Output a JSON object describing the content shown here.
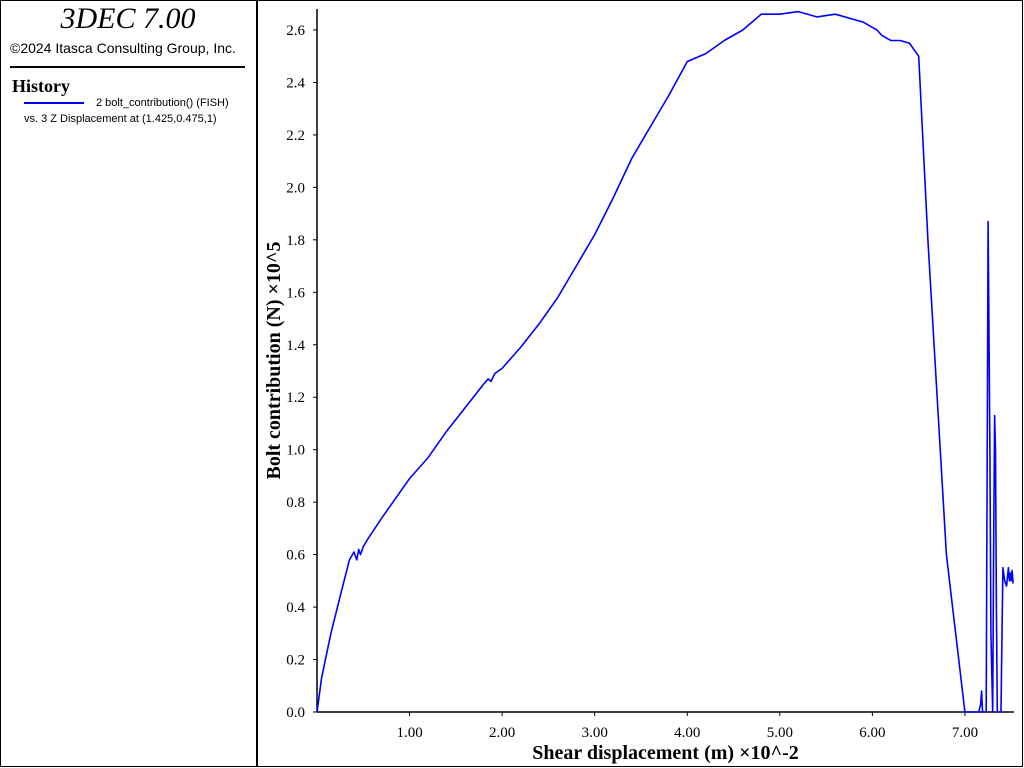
{
  "sidebar": {
    "app_title": "3DEC 7.00",
    "copyright": "©2024 Itasca Consulting Group, Inc.",
    "legend_heading": "History",
    "legend_line1": "2 bolt_contribution() (FISH)",
    "legend_line2": "vs. 3 Z Displacement at (1.425,0.475,1)"
  },
  "chart_data": {
    "type": "line",
    "xlabel": "Shear displacement (m) ×10^-2",
    "ylabel": "Bolt contribution (N) ×10^5",
    "xlim": [
      0.0,
      7.53
    ],
    "ylim": [
      0.0,
      2.68
    ],
    "x_ticks": [
      1.0,
      2.0,
      3.0,
      4.0,
      5.0,
      6.0,
      7.0
    ],
    "x_tick_labels": [
      "1.00",
      "2.00",
      "3.00",
      "4.00",
      "5.00",
      "6.00",
      "7.00"
    ],
    "y_ticks": [
      0.0,
      0.2,
      0.4,
      0.6,
      0.8,
      1.0,
      1.2,
      1.4,
      1.6,
      1.8,
      2.0,
      2.2,
      2.4,
      2.6
    ],
    "y_tick_labels": [
      "0.0",
      "0.2",
      "0.4",
      "0.6",
      "0.8",
      "1.0",
      "1.2",
      "1.4",
      "1.6",
      "1.8",
      "2.0",
      "2.2",
      "2.4",
      "2.6"
    ],
    "grid": false,
    "line_color": "#0000ff",
    "series": [
      {
        "name": "2 bolt_contribution() (FISH)",
        "x": [
          0.0,
          0.05,
          0.15,
          0.25,
          0.35,
          0.4,
          0.43,
          0.45,
          0.47,
          0.5,
          0.55,
          0.7,
          0.9,
          1.0,
          1.2,
          1.4,
          1.6,
          1.8,
          1.85,
          1.88,
          1.92,
          2.0,
          2.2,
          2.4,
          2.6,
          2.8,
          3.0,
          3.2,
          3.4,
          3.6,
          3.8,
          4.0,
          4.2,
          4.4,
          4.6,
          4.7,
          4.8,
          5.0,
          5.2,
          5.4,
          5.6,
          5.8,
          5.9,
          6.0,
          6.05,
          6.1,
          6.15,
          6.2,
          6.3,
          6.4,
          6.5,
          6.6,
          6.8,
          7.0,
          7.1,
          7.15,
          7.17,
          7.18,
          7.19,
          7.21,
          7.23,
          7.25,
          7.27,
          7.28,
          7.3,
          7.31,
          7.32,
          7.33,
          7.34,
          7.35,
          7.36,
          7.37,
          7.38,
          7.39,
          7.4,
          7.41,
          7.43,
          7.45,
          7.47,
          7.48,
          7.49,
          7.5,
          7.51,
          7.52
        ],
        "y": [
          0.0,
          0.13,
          0.3,
          0.44,
          0.58,
          0.61,
          0.58,
          0.62,
          0.6,
          0.63,
          0.66,
          0.74,
          0.84,
          0.89,
          0.97,
          1.07,
          1.16,
          1.25,
          1.27,
          1.26,
          1.29,
          1.31,
          1.39,
          1.48,
          1.58,
          1.7,
          1.82,
          1.96,
          2.11,
          2.23,
          2.35,
          2.48,
          2.51,
          2.56,
          2.6,
          2.63,
          2.66,
          2.66,
          2.67,
          2.65,
          2.66,
          2.64,
          2.63,
          2.61,
          2.6,
          2.58,
          2.57,
          2.56,
          2.56,
          2.55,
          2.5,
          1.8,
          0.6,
          0.0,
          0.0,
          0.0,
          0.03,
          0.08,
          0.0,
          0.0,
          0.0,
          1.87,
          1.0,
          0.3,
          0.0,
          0.6,
          1.13,
          1.0,
          0.4,
          0.0,
          0.0,
          0.0,
          0.0,
          0.0,
          0.3,
          0.55,
          0.5,
          0.48,
          0.55,
          0.5,
          0.53,
          0.5,
          0.54,
          0.49
        ]
      }
    ]
  }
}
